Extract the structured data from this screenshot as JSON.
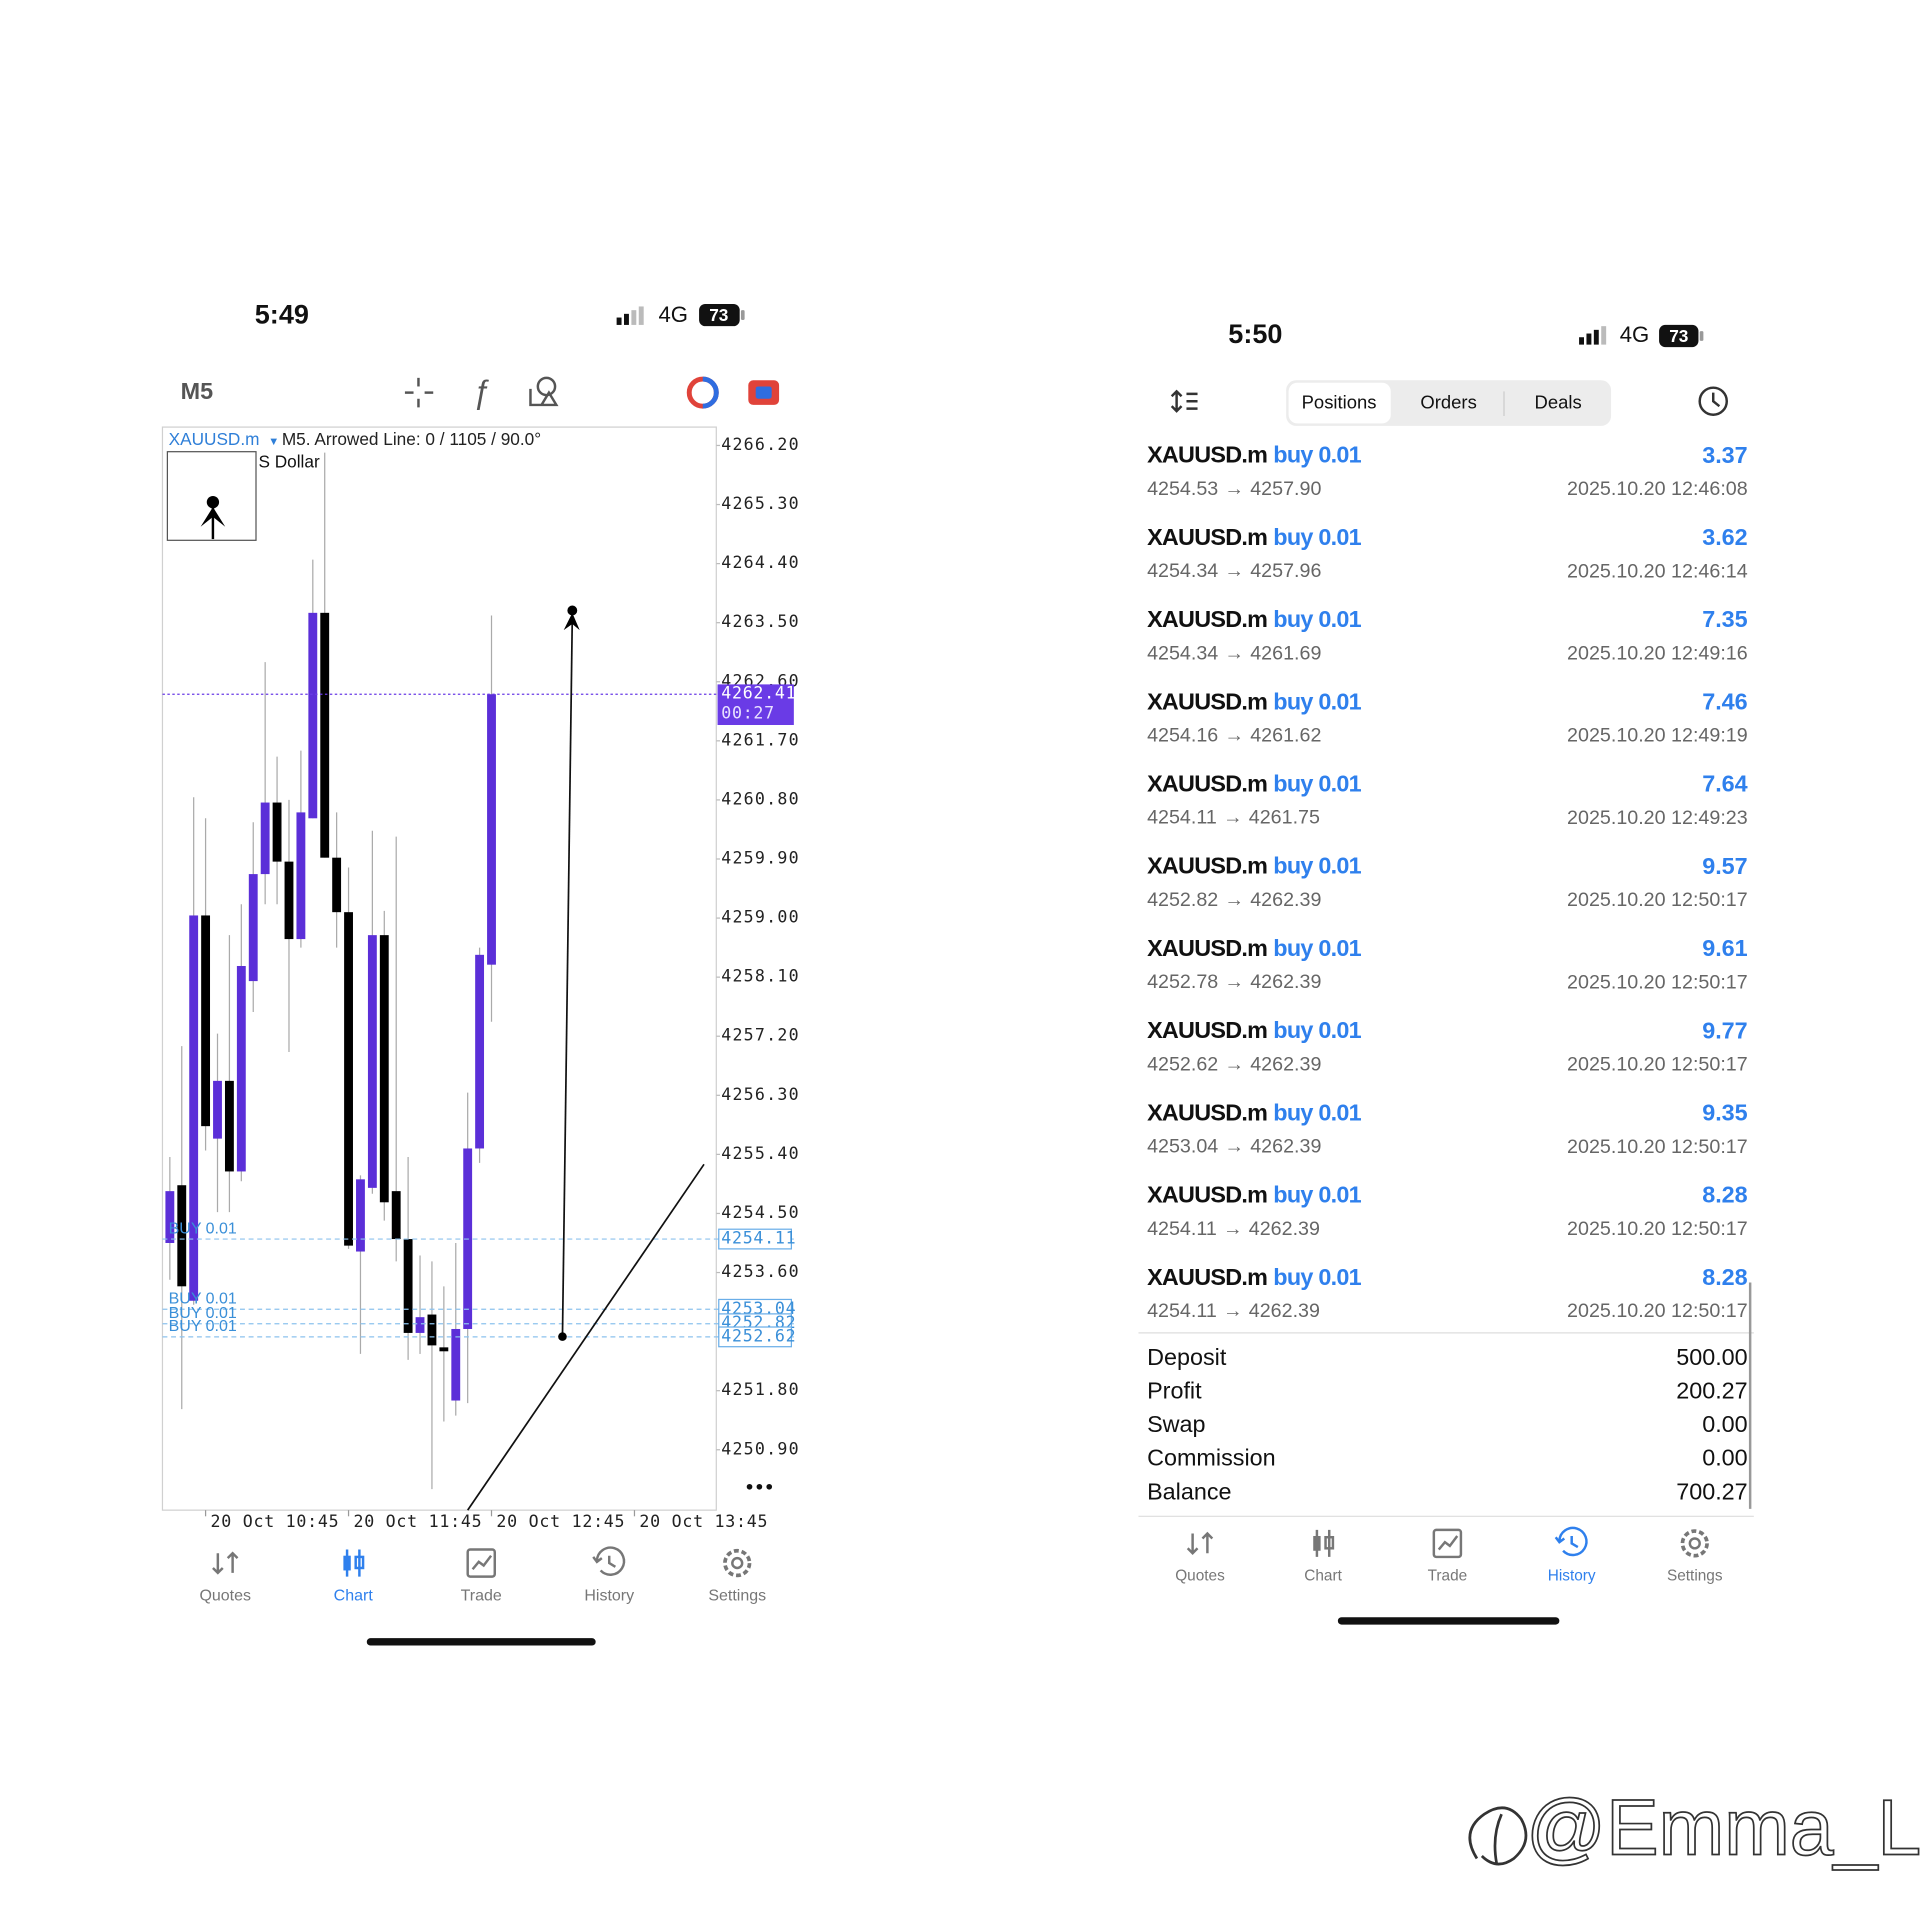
{
  "left_screen": {
    "status_bar": {
      "time": "5:49",
      "network": "4G",
      "battery": "73"
    },
    "timeframe": "M5",
    "chart_data": {
      "type": "candlestick",
      "symbol": "XAUUSD.m",
      "title": "M5. Arrowed Line: 0 / 1105 / 90.0°",
      "description": "S Dollar",
      "up_color": "#5b2fd8",
      "down_color": "#000000",
      "candles": [
        {
          "open": 4254.05,
          "high": 4255.36,
          "low": 4253.49,
          "close": 4254.84
        },
        {
          "open": 4254.93,
          "high": 4257.05,
          "low": 4251.52,
          "close": 4253.39
        },
        {
          "open": 4253.17,
          "high": 4260.84,
          "low": 4253.11,
          "close": 4259.04
        },
        {
          "open": 4259.04,
          "high": 4260.52,
          "low": 4255.46,
          "close": 4255.83
        },
        {
          "open": 4255.64,
          "high": 4257.24,
          "low": 4254.52,
          "close": 4256.52
        },
        {
          "open": 4256.52,
          "high": 4258.74,
          "low": 4254.52,
          "close": 4255.14
        },
        {
          "open": 4255.14,
          "high": 4259.21,
          "low": 4254.99,
          "close": 4258.27
        },
        {
          "open": 4258.04,
          "high": 4260.46,
          "low": 4257.57,
          "close": 4259.67
        },
        {
          "open": 4259.67,
          "high": 4262.9,
          "low": 4259.21,
          "close": 4260.76
        },
        {
          "open": 4260.76,
          "high": 4261.46,
          "low": 4259.21,
          "close": 4259.86
        },
        {
          "open": 4259.86,
          "high": 4260.8,
          "low": 4256.96,
          "close": 4258.68
        },
        {
          "open": 4258.68,
          "high": 4261.55,
          "low": 4258.55,
          "close": 4260.61
        },
        {
          "open": 4260.52,
          "high": 4264.46,
          "low": 4260.52,
          "close": 4263.65
        },
        {
          "open": 4263.65,
          "high": 4266.09,
          "low": 4259.92,
          "close": 4259.92
        },
        {
          "open": 4259.92,
          "high": 4260.61,
          "low": 4258.55,
          "close": 4259.09
        },
        {
          "open": 4259.09,
          "high": 4259.77,
          "low": 4253.96,
          "close": 4254.01
        },
        {
          "open": 4253.92,
          "high": 4255.08,
          "low": 4252.36,
          "close": 4255.02
        },
        {
          "open": 4254.89,
          "high": 4260.33,
          "low": 4254.8,
          "close": 4258.74
        },
        {
          "open": 4258.74,
          "high": 4259.11,
          "low": 4254.39,
          "close": 4254.67
        },
        {
          "open": 4254.84,
          "high": 4260.24,
          "low": 4253.77,
          "close": 4254.11
        },
        {
          "open": 4254.11,
          "high": 4255.36,
          "low": 4252.27,
          "close": 4252.68
        },
        {
          "open": 4252.68,
          "high": 4253.86,
          "low": 4252.36,
          "close": 4252.92
        },
        {
          "open": 4252.96,
          "high": 4253.77,
          "low": 4250.3,
          "close": 4252.49
        },
        {
          "open": 4252.46,
          "high": 4253.39,
          "low": 4251.33,
          "close": 4252.4
        },
        {
          "open": 4251.65,
          "high": 4254.05,
          "low": 4251.42,
          "close": 4252.74
        },
        {
          "open": 4252.74,
          "high": 4256.34,
          "low": 4251.61,
          "close": 4255.49
        },
        {
          "open": 4255.49,
          "high": 4258.55,
          "low": 4255.27,
          "close": 4258.44
        },
        {
          "open": 4258.29,
          "high": 4263.61,
          "low": 4257.42,
          "close": 4262.41
        }
      ],
      "ylim": [
        4249.98,
        4266.48
      ],
      "yticks": [
        {
          "value": 4266.2,
          "label": "4266.20"
        },
        {
          "value": 4265.3,
          "label": "4265.30"
        },
        {
          "value": 4264.4,
          "label": "4264.40"
        },
        {
          "value": 4263.5,
          "label": "4263.50"
        },
        {
          "value": 4262.6,
          "label": "4262.60"
        },
        {
          "value": 4261.7,
          "label": "4261.70"
        },
        {
          "value": 4260.8,
          "label": "4260.80"
        },
        {
          "value": 4259.9,
          "label": "4259.90"
        },
        {
          "value": 4259.0,
          "label": "4259.00"
        },
        {
          "value": 4258.1,
          "label": "4258.10"
        },
        {
          "value": 4257.2,
          "label": "4257.20"
        },
        {
          "value": 4256.3,
          "label": "4256.30"
        },
        {
          "value": 4255.4,
          "label": "4255.40"
        },
        {
          "value": 4254.5,
          "label": "4254.50"
        },
        {
          "value": 4253.6,
          "label": "4253.60"
        },
        {
          "value": 4251.8,
          "label": "4251.80"
        },
        {
          "value": 4250.9,
          "label": "4250.90"
        }
      ],
      "xlim": [
        -0.62,
        45.87
      ],
      "xticks": [
        {
          "value": 3,
          "label": "20 Oct 10:45"
        },
        {
          "value": 15,
          "label": "20 Oct 11:45"
        },
        {
          "value": 27,
          "label": "20 Oct 12:45"
        },
        {
          "value": 39,
          "label": "20 Oct 13:45"
        }
      ],
      "current_price": {
        "value": 4262.41,
        "countdown": "00:27",
        "color": "#6a3be6"
      },
      "orders": [
        {
          "label": "BUY 0.01",
          "price": 4254.11
        },
        {
          "label": "BUY 0.01",
          "price": 4253.04
        },
        {
          "label": "BUY 0.01",
          "price": 4252.82
        },
        {
          "label": "BUY 0.01",
          "price": 4252.62
        }
      ],
      "order_color": "#3a8fd8"
    },
    "tab_bar": {
      "items": [
        "Quotes",
        "Chart",
        "Trade",
        "History",
        "Settings"
      ],
      "active": 1
    }
  },
  "right_screen": {
    "status_bar": {
      "time": "5:50",
      "network": "4G",
      "battery": "73"
    },
    "segments": [
      "Positions",
      "Orders",
      "Deals"
    ],
    "positions": [
      {
        "symbol": "XAUUSD.m",
        "side": "buy 0.01",
        "profit": "3.37",
        "open_price": "4254.53",
        "close_price": "4257.90",
        "time": "2025.10.20 12:46:08"
      },
      {
        "symbol": "XAUUSD.m",
        "side": "buy 0.01",
        "profit": "3.62",
        "open_price": "4254.34",
        "close_price": "4257.96",
        "time": "2025.10.20 12:46:14"
      },
      {
        "symbol": "XAUUSD.m",
        "side": "buy 0.01",
        "profit": "7.35",
        "open_price": "4254.34",
        "close_price": "4261.69",
        "time": "2025.10.20 12:49:16"
      },
      {
        "symbol": "XAUUSD.m",
        "side": "buy 0.01",
        "profit": "7.46",
        "open_price": "4254.16",
        "close_price": "4261.62",
        "time": "2025.10.20 12:49:19"
      },
      {
        "symbol": "XAUUSD.m",
        "side": "buy 0.01",
        "profit": "7.64",
        "open_price": "4254.11",
        "close_price": "4261.75",
        "time": "2025.10.20 12:49:23"
      },
      {
        "symbol": "XAUUSD.m",
        "side": "buy 0.01",
        "profit": "9.57",
        "open_price": "4252.82",
        "close_price": "4262.39",
        "time": "2025.10.20 12:50:17"
      },
      {
        "symbol": "XAUUSD.m",
        "side": "buy 0.01",
        "profit": "9.61",
        "open_price": "4252.78",
        "close_price": "4262.39",
        "time": "2025.10.20 12:50:17"
      },
      {
        "symbol": "XAUUSD.m",
        "side": "buy 0.01",
        "profit": "9.77",
        "open_price": "4252.62",
        "close_price": "4262.39",
        "time": "2025.10.20 12:50:17"
      },
      {
        "symbol": "XAUUSD.m",
        "side": "buy 0.01",
        "profit": "9.35",
        "open_price": "4253.04",
        "close_price": "4262.39",
        "time": "2025.10.20 12:50:17"
      },
      {
        "symbol": "XAUUSD.m",
        "side": "buy 0.01",
        "profit": "8.28",
        "open_price": "4254.11",
        "close_price": "4262.39",
        "time": "2025.10.20 12:50:17"
      },
      {
        "symbol": "XAUUSD.m",
        "side": "buy 0.01",
        "profit": "8.28",
        "open_price": "4254.11",
        "close_price": "4262.39",
        "time": "2025.10.20 12:50:17"
      }
    ],
    "summary": [
      {
        "label": "Deposit",
        "value": "500.00"
      },
      {
        "label": "Profit",
        "value": "200.27"
      },
      {
        "label": "Swap",
        "value": "0.00"
      },
      {
        "label": "Commission",
        "value": "0.00"
      },
      {
        "label": "Balance",
        "value": "700.27"
      }
    ],
    "tab_bar": {
      "items": [
        "Quotes",
        "Chart",
        "Trade",
        "History",
        "Settings"
      ],
      "active": 3
    }
  },
  "watermark": "@Emma_Lia"
}
